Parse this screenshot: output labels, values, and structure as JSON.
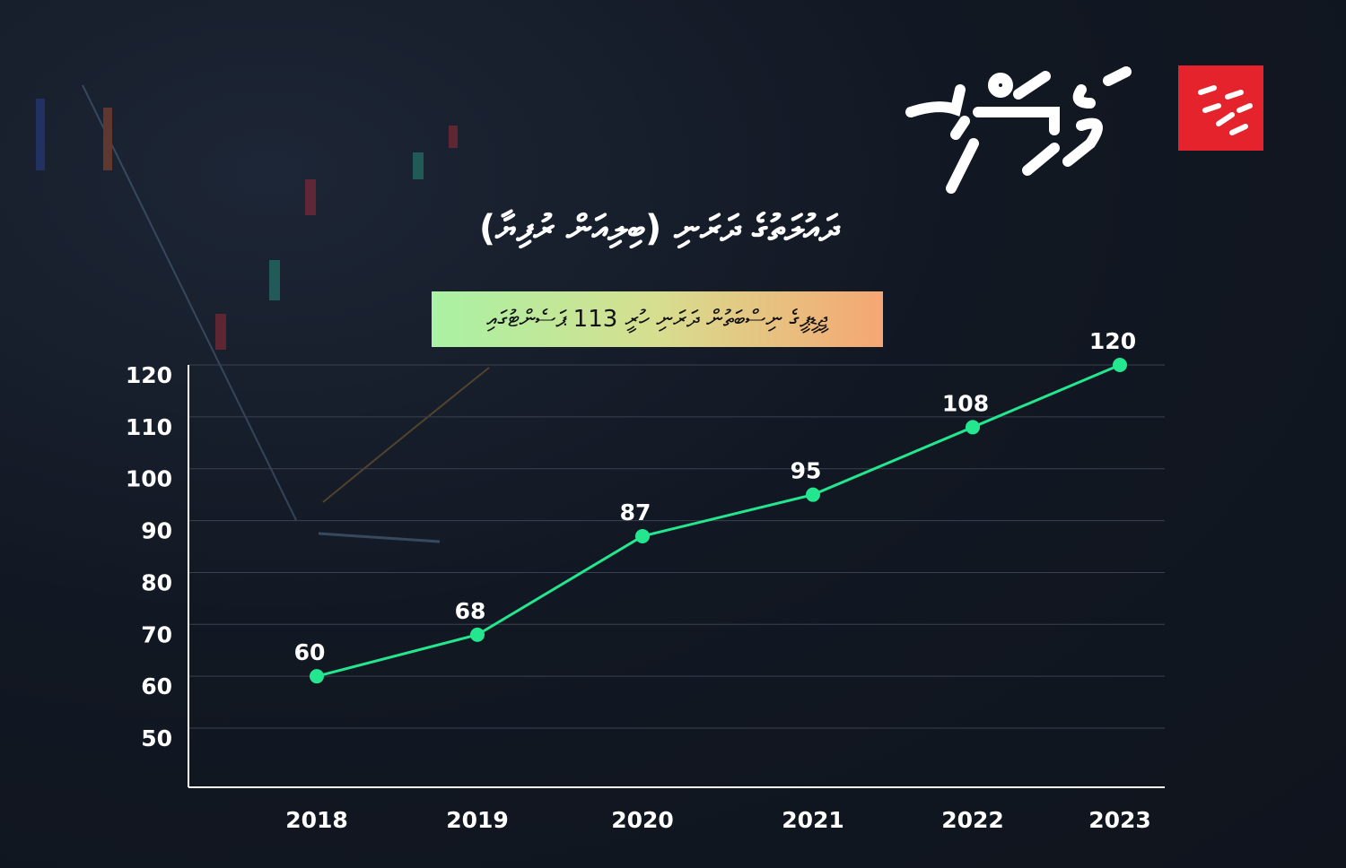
{
  "chart_data": {
    "type": "line",
    "title": "ދައުލަތުގެ ދަރަނި (ބިލިއަން ރުފިޔާ)",
    "subtitle": "ޖީޑީޕީގެ ނިސްބަތުން ދަރަނި ހުރީ 113 ޕަސެންޓުގައި",
    "categories": [
      "2018",
      "2019",
      "2020",
      "2021",
      "2022",
      "2023"
    ],
    "values": [
      60,
      68,
      87,
      95,
      108,
      120
    ],
    "yticks": [
      50,
      60,
      70,
      80,
      90,
      100,
      110,
      120
    ],
    "ylim": [
      38.6,
      120
    ],
    "xlabel": "",
    "ylabel": "",
    "grid": true,
    "data_labels": true,
    "line_color": "#23e68e",
    "accent_badge_color": "#e5232c"
  }
}
